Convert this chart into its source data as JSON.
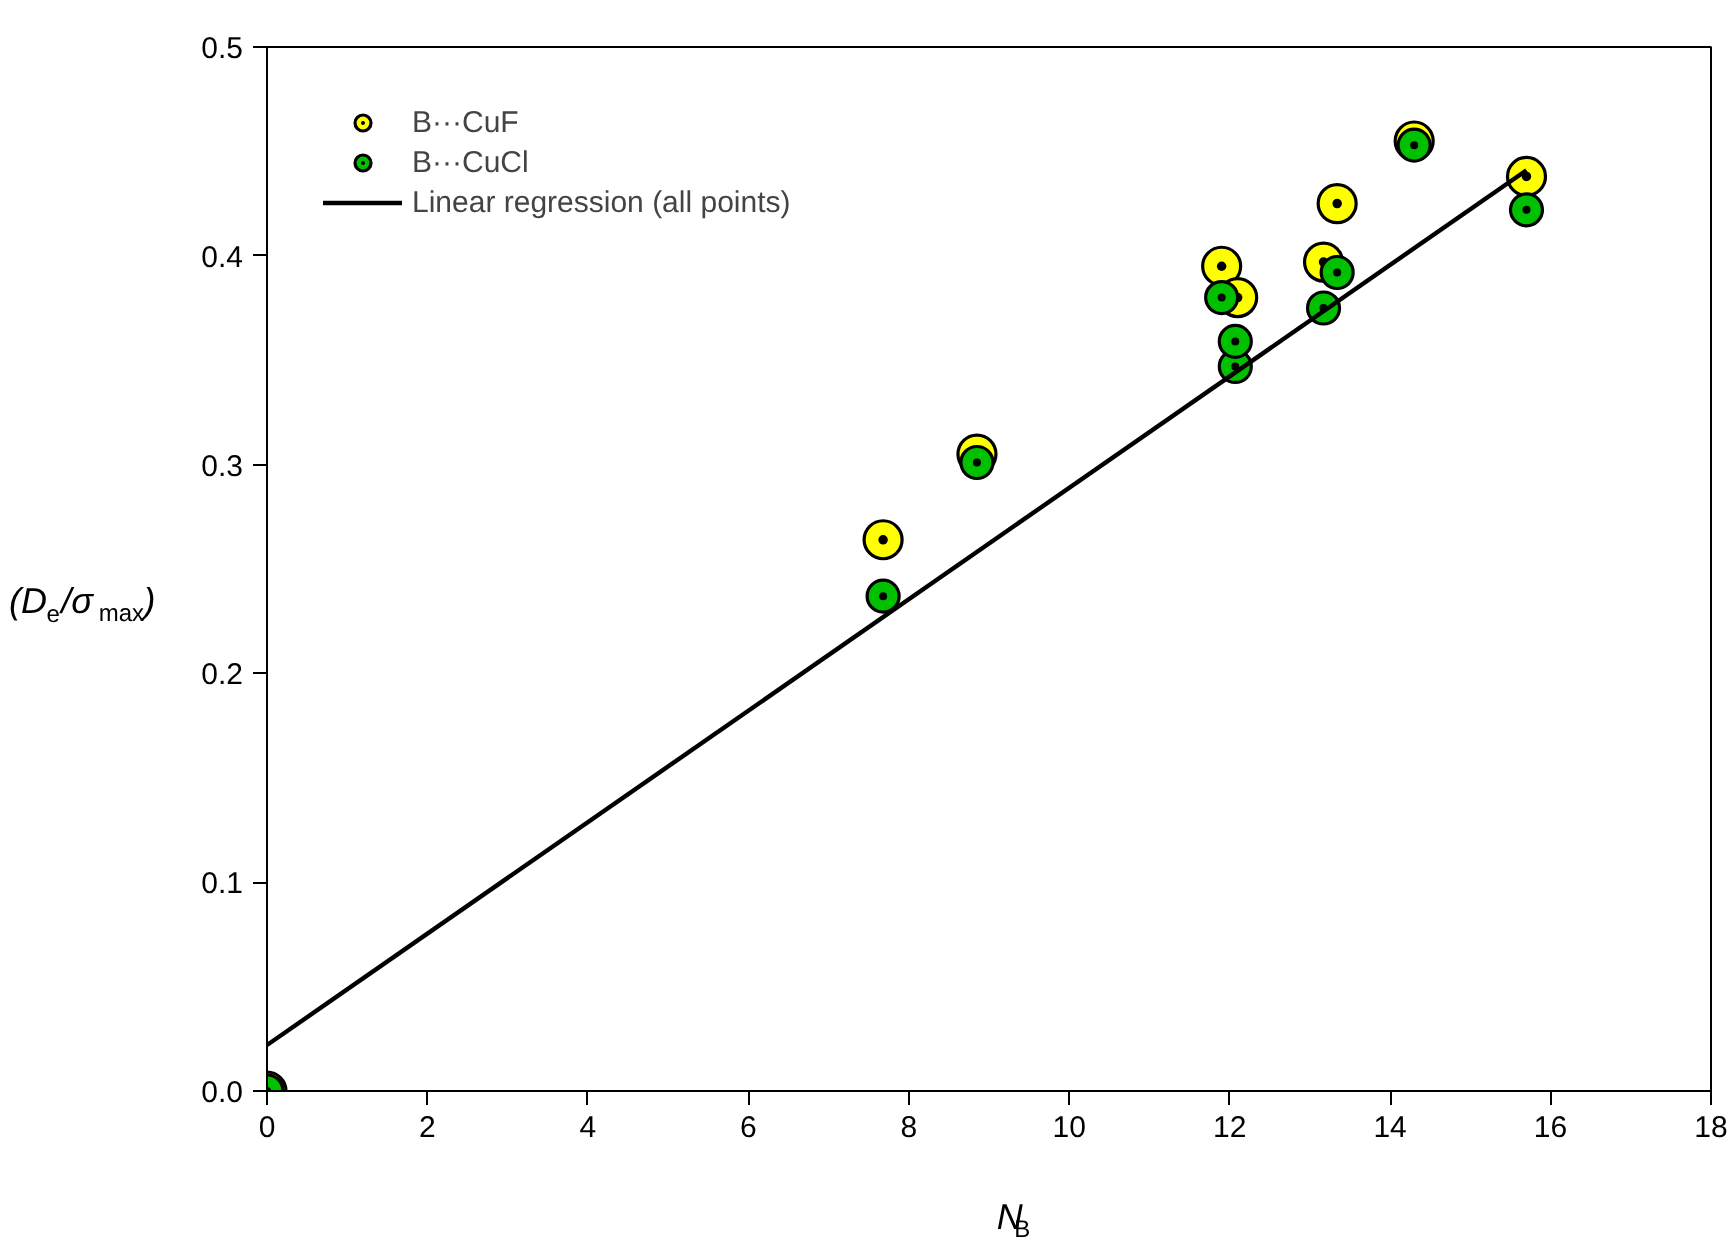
{
  "chart_data": {
    "type": "scatter",
    "xlabel": "N$_{B}$",
    "ylabel": "(D$_{e}$/σ$_{max}$)",
    "xlim": [
      0,
      18
    ],
    "ylim": [
      0,
      0.5
    ],
    "xticks": [
      0,
      2,
      4,
      6,
      8,
      10,
      12,
      14,
      16,
      18
    ],
    "yticks": [
      {
        "value": 0,
        "label": "0.0"
      },
      0.1,
      0.2,
      0.3,
      0.4,
      0.5
    ],
    "grid": false,
    "legend": "top left",
    "series": [
      {
        "name": "B···CuF",
        "color": "#ffff00",
        "marker": "circle",
        "x": [
          0,
          7.68,
          8.85,
          11.9,
          12.1,
          13.17,
          13.34,
          14.3,
          15.7
        ],
        "values": [
          0,
          0.264,
          0.305,
          0.395,
          0.38,
          0.397,
          0.425,
          0.455,
          0.438
        ]
      },
      {
        "name": "B···CuCl",
        "color": "#00c000",
        "marker": "circle",
        "x": [
          0,
          7.68,
          8.85,
          11.9,
          12.07,
          12.07,
          13.17,
          13.34,
          14.3,
          15.7
        ],
        "values": [
          0,
          0.237,
          0.301,
          0.38,
          0.347,
          0.359,
          0.375,
          0.392,
          0.453,
          0.422
        ]
      },
      {
        "name": "Linear regression (all points)",
        "type": "line",
        "color": "#000000",
        "line_style": "solid",
        "marker": "none",
        "x": [
          0,
          15.7
        ],
        "values": [
          0.022,
          0.441
        ]
      }
    ]
  }
}
